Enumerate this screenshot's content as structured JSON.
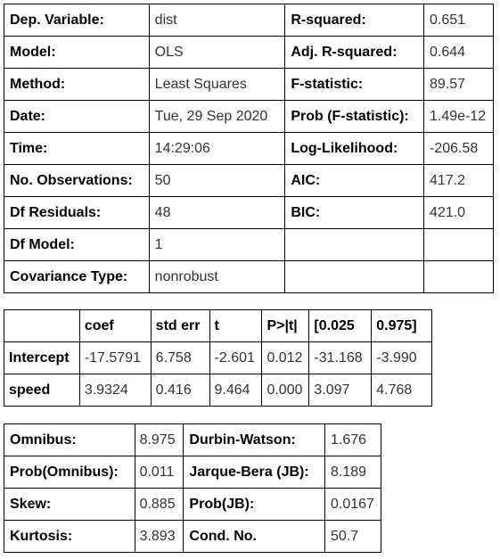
{
  "summary": {
    "rows": [
      {
        "l1": "Dep. Variable:",
        "v1": "dist",
        "l2": "R-squared:",
        "v2": "0.651"
      },
      {
        "l1": "Model:",
        "v1": "OLS",
        "l2": "Adj. R-squared:",
        "v2": "0.644"
      },
      {
        "l1": "Method:",
        "v1": "Least Squares",
        "l2": "F-statistic:",
        "v2": "89.57"
      },
      {
        "l1": "Date:",
        "v1": "Tue, 29 Sep 2020",
        "l2": "Prob (F-statistic):",
        "v2": "1.49e-12"
      },
      {
        "l1": "Time:",
        "v1": "14:29:06",
        "l2": "Log-Likelihood:",
        "v2": "-206.58"
      },
      {
        "l1": "No. Observations:",
        "v1": "50",
        "l2": "AIC:",
        "v2": "417.2"
      },
      {
        "l1": "Df Residuals:",
        "v1": "48",
        "l2": "BIC:",
        "v2": "421.0"
      },
      {
        "l1": "Df Model:",
        "v1": "1",
        "l2": "",
        "v2": ""
      },
      {
        "l1": "Covariance Type:",
        "v1": "nonrobust",
        "l2": "",
        "v2": ""
      }
    ]
  },
  "coefficients": {
    "headers": [
      "",
      "coef",
      "std err",
      "t",
      "P>|t|",
      "[0.025",
      "0.975]"
    ],
    "rows": [
      {
        "name": "Intercept",
        "coef": "-17.5791",
        "std_err": "6.758",
        "t": "-2.601",
        "p": "0.012",
        "lo": "-31.168",
        "hi": "-3.990"
      },
      {
        "name": "speed",
        "coef": "3.9324",
        "std_err": "0.416",
        "t": "9.464",
        "p": "0.000",
        "lo": "3.097",
        "hi": "4.768"
      }
    ]
  },
  "diagnostics": {
    "rows": [
      {
        "l1": "Omnibus:",
        "v1": "8.975",
        "l2": "Durbin-Watson:",
        "v2": "1.676"
      },
      {
        "l1": "Prob(Omnibus):",
        "v1": "0.011",
        "l2": "Jarque-Bera (JB):",
        "v2": "8.189"
      },
      {
        "l1": "Skew:",
        "v1": "0.885",
        "l2": "Prob(JB):",
        "v2": "0.0167"
      },
      {
        "l1": "Kurtosis:",
        "v1": "3.893",
        "l2": "Cond. No.",
        "v2": "50.7"
      }
    ]
  }
}
